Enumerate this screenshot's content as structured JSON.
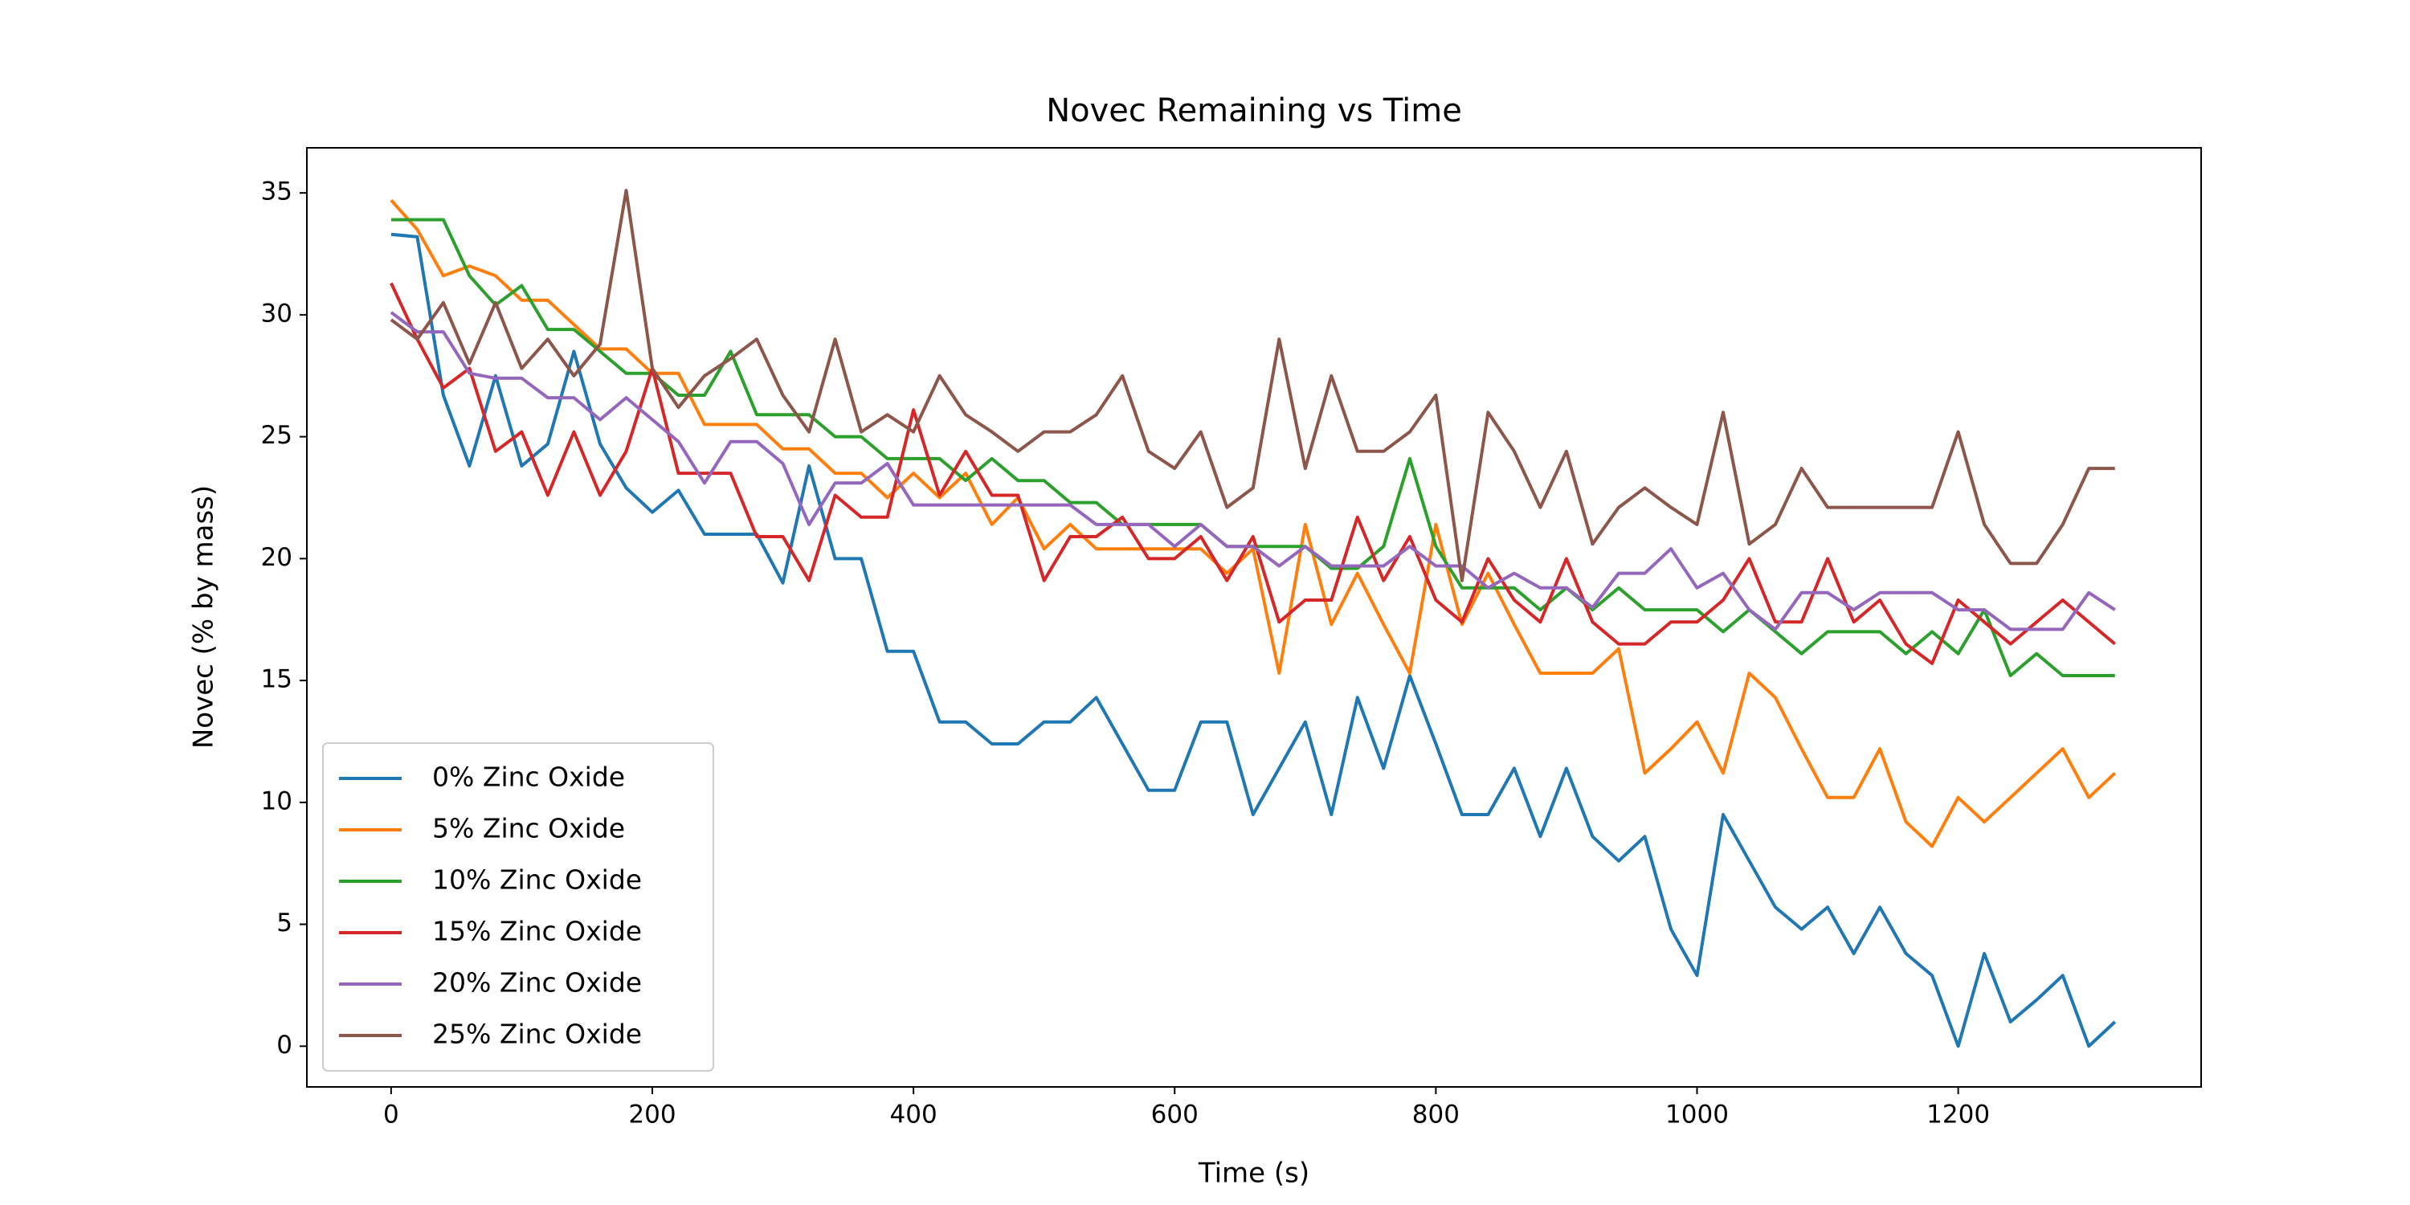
{
  "chart_data": {
    "type": "line",
    "title": "Novec Remaining vs Time",
    "x_label": "Time (s)",
    "y_label": "Novec (% by mass)",
    "x": [
      0,
      20,
      40,
      60,
      80,
      100,
      120,
      140,
      160,
      180,
      200,
      220,
      240,
      260,
      280,
      300,
      320,
      340,
      360,
      380,
      400,
      420,
      440,
      460,
      480,
      500,
      520,
      540,
      560,
      580,
      600,
      620,
      640,
      660,
      680,
      700,
      720,
      740,
      760,
      780,
      800,
      820,
      840,
      860,
      880,
      900,
      920,
      940,
      960,
      980,
      1000,
      1020,
      1040,
      1060,
      1080,
      1100,
      1120,
      1140,
      1160,
      1180,
      1200,
      1220,
      1240,
      1260,
      1280,
      1300,
      1320
    ],
    "series": [
      {
        "name": "0% Zinc Oxide",
        "color": "#1f77b4",
        "values": [
          33.3,
          33.2,
          26.7,
          23.8,
          27.5,
          23.8,
          24.7,
          28.5,
          24.7,
          22.9,
          21.9,
          22.8,
          21,
          21,
          21,
          19,
          23.8,
          20,
          20,
          16.2,
          16.2,
          13.3,
          13.3,
          12.4,
          12.4,
          13.3,
          13.3,
          14.3,
          12.4,
          10.5,
          10.5,
          13.3,
          13.3,
          9.5,
          11.4,
          13.3,
          9.5,
          14.3,
          11.4,
          15.2,
          12.4,
          9.5,
          9.5,
          11.4,
          8.6,
          11.4,
          8.6,
          7.6,
          8.6,
          4.8,
          2.9,
          9.5,
          7.6,
          5.7,
          4.8,
          5.7,
          3.8,
          5.7,
          3.8,
          2.9,
          0,
          3.8,
          1,
          1.9,
          2.9,
          0,
          1
        ]
      },
      {
        "name": "5% Zinc Oxide",
        "color": "#ff7f0e",
        "values": [
          34.7,
          33.5,
          31.6,
          32,
          31.6,
          30.6,
          30.6,
          29.6,
          28.6,
          28.6,
          27.6,
          27.6,
          25.5,
          25.5,
          25.5,
          24.5,
          24.5,
          23.5,
          23.5,
          22.5,
          23.5,
          22.5,
          23.5,
          21.4,
          22.5,
          20.4,
          21.4,
          20.4,
          20.4,
          20.4,
          20.4,
          20.4,
          19.4,
          20.4,
          15.3,
          21.4,
          17.3,
          19.4,
          17.3,
          15.3,
          21.4,
          17.3,
          19.4,
          17.3,
          15.3,
          15.3,
          15.3,
          16.3,
          11.2,
          12.2,
          13.3,
          11.2,
          15.3,
          14.3,
          12.2,
          10.2,
          10.2,
          12.2,
          9.2,
          8.2,
          10.2,
          9.2,
          10.2,
          11.2,
          12.2,
          10.2,
          11.2
        ]
      },
      {
        "name": "10% Zinc Oxide",
        "color": "#2ca02c",
        "values": [
          33.9,
          33.9,
          33.9,
          31.6,
          30.4,
          31.2,
          29.4,
          29.4,
          28.5,
          27.6,
          27.6,
          26.7,
          26.7,
          28.5,
          25.9,
          25.9,
          25.9,
          25,
          25,
          24.1,
          24.1,
          24.1,
          23.2,
          24.1,
          23.2,
          23.2,
          22.3,
          22.3,
          21.4,
          21.4,
          21.4,
          21.4,
          20.5,
          20.5,
          20.5,
          20.5,
          19.6,
          19.6,
          20.5,
          24.1,
          20.5,
          18.8,
          18.8,
          18.8,
          17.9,
          18.8,
          17.9,
          18.8,
          17.9,
          17.9,
          17.9,
          17,
          17.9,
          17,
          16.1,
          17,
          17,
          17,
          16.1,
          17,
          16.1,
          17.9,
          15.2,
          16.1,
          15.2,
          15.2,
          15.2
        ]
      },
      {
        "name": "15% Zinc Oxide",
        "color": "#d62728",
        "values": [
          31.3,
          29,
          27,
          27.8,
          24.4,
          25.2,
          22.6,
          25.2,
          22.6,
          24.4,
          27.8,
          23.5,
          23.5,
          23.5,
          20.9,
          20.9,
          19.1,
          22.6,
          21.7,
          21.7,
          26.1,
          22.6,
          24.4,
          22.6,
          22.6,
          19.1,
          20.9,
          20.9,
          21.7,
          20,
          20,
          20.9,
          19.1,
          20.9,
          17.4,
          18.3,
          18.3,
          21.7,
          19.1,
          20.9,
          18.3,
          17.4,
          20,
          18.3,
          17.4,
          20,
          17.4,
          16.5,
          16.5,
          17.4,
          17.4,
          18.3,
          20,
          17.4,
          17.4,
          20,
          17.4,
          18.3,
          16.5,
          15.7,
          18.3,
          17.4,
          16.5,
          17.4,
          18.3,
          17.4,
          16.5
        ]
      },
      {
        "name": "20% Zinc Oxide",
        "color": "#9467bd",
        "values": [
          30.1,
          29.3,
          29.3,
          27.6,
          27.4,
          27.4,
          26.6,
          26.6,
          25.7,
          26.6,
          25.7,
          24.8,
          23.1,
          24.8,
          24.8,
          23.9,
          21.4,
          23.1,
          23.1,
          23.9,
          22.2,
          22.2,
          22.2,
          22.2,
          22.2,
          22.2,
          22.2,
          21.4,
          21.4,
          21.4,
          20.5,
          21.4,
          20.5,
          20.5,
          19.7,
          20.5,
          19.7,
          19.7,
          19.7,
          20.5,
          19.7,
          19.7,
          18.8,
          19.4,
          18.8,
          18.8,
          18,
          19.4,
          19.4,
          20.4,
          18.8,
          19.4,
          17.9,
          17.1,
          18.6,
          18.6,
          17.9,
          18.6,
          18.6,
          18.6,
          17.9,
          17.9,
          17.1,
          17.1,
          17.1,
          18.6,
          17.9
        ]
      },
      {
        "name": "25% Zinc Oxide",
        "color": "#8c564b",
        "values": [
          29.8,
          29,
          30.5,
          28,
          30.5,
          27.8,
          29,
          27.5,
          28.8,
          35.1,
          27.8,
          26.2,
          27.5,
          28.2,
          29,
          26.7,
          25.2,
          29,
          25.2,
          25.9,
          25.2,
          27.5,
          25.9,
          25.2,
          24.4,
          25.2,
          25.2,
          25.9,
          27.5,
          24.4,
          23.7,
          25.2,
          22.1,
          22.9,
          29,
          23.7,
          27.5,
          24.4,
          24.4,
          25.2,
          26.7,
          19.1,
          26,
          24.4,
          22.1,
          24.4,
          20.6,
          22.1,
          22.9,
          22.1,
          21.4,
          26,
          20.6,
          21.4,
          23.7,
          22.1,
          22.1,
          22.1,
          22.1,
          22.1,
          25.2,
          21.4,
          19.8,
          19.8,
          21.4,
          23.7,
          23.7
        ]
      }
    ],
    "xlim": [
      -64.5,
      1386
    ],
    "ylim": [
      -1.67,
      36.85
    ],
    "xticks": [
      0,
      200,
      400,
      600,
      800,
      1000,
      1200
    ],
    "yticks": [
      0,
      5,
      10,
      15,
      20,
      25,
      30,
      35
    ],
    "grid": false,
    "legend": "lower left"
  }
}
